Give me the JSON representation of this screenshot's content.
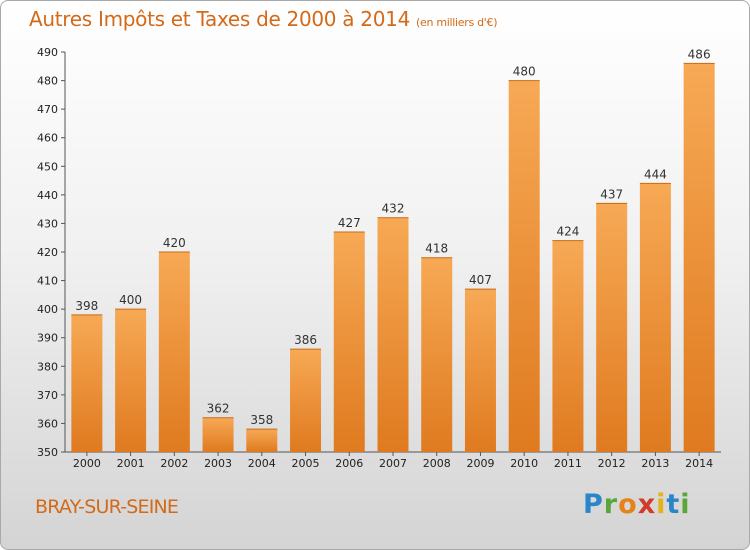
{
  "header": {
    "title": "Autres Impôts et Taxes de 2000 à 2014",
    "subtitle": "(en milliers d'€)"
  },
  "footer": {
    "place": "BRAY-SUR-SEINE",
    "logo_letters": [
      "P",
      "r",
      "o",
      "x",
      "i",
      "t",
      "i"
    ]
  },
  "colors": {
    "title": "#d36a1a",
    "bar_top": "#f7a955",
    "bar_bottom": "#df7a1f",
    "logo": [
      "#2a86c8",
      "#5aa63a",
      "#e5821a",
      "#d23a2a",
      "#e5b21a",
      "#2a86c8",
      "#5aa63a"
    ]
  },
  "chart_data": {
    "type": "bar",
    "title": "Autres Impôts et Taxes de 2000 à 2014",
    "subtitle": "(en milliers d'€)",
    "xlabel": "",
    "ylabel": "",
    "categories": [
      "2000",
      "2001",
      "2002",
      "2003",
      "2004",
      "2005",
      "2006",
      "2007",
      "2008",
      "2009",
      "2010",
      "2011",
      "2012",
      "2013",
      "2014"
    ],
    "values": [
      398,
      400,
      420,
      362,
      358,
      386,
      427,
      432,
      418,
      407,
      480,
      424,
      437,
      444,
      486
    ],
    "ylim": [
      350,
      490
    ],
    "yticks": [
      350,
      360,
      370,
      380,
      390,
      400,
      410,
      420,
      430,
      440,
      450,
      460,
      470,
      480,
      490
    ],
    "grid": false,
    "legend": "none"
  }
}
